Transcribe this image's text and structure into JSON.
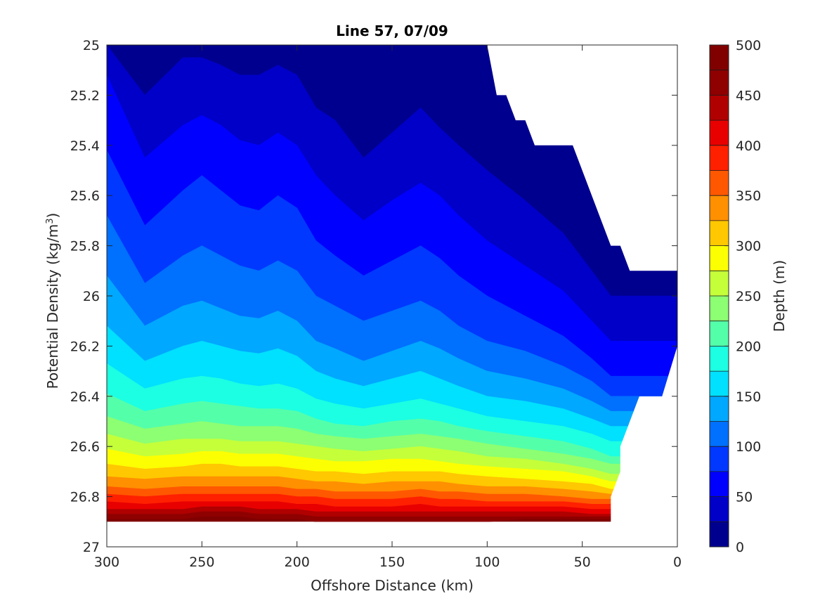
{
  "chart_data": {
    "type": "contourf",
    "title": "Line 57, 07/09",
    "xlabel": "Offshore Distance (km)",
    "ylabel": "Potential Density (kg/m",
    "ylabel_superscript": "3",
    "ylabel_suffix": ")",
    "colorbar_label": "Depth (m)",
    "xlim": [
      300,
      0
    ],
    "ylim": [
      25,
      27
    ],
    "x_reversed": true,
    "y_reversed": true,
    "x_ticks": [
      300,
      250,
      200,
      150,
      100,
      50,
      0
    ],
    "x_tick_labels": [
      "300",
      "250",
      "200",
      "150",
      "100",
      "50",
      "0"
    ],
    "y_ticks": [
      25,
      25.2,
      25.4,
      25.6,
      25.8,
      26,
      26.2,
      26.4,
      26.6,
      26.8,
      27
    ],
    "y_tick_labels": [
      "25",
      "25.2",
      "25.4",
      "25.6",
      "25.8",
      "26",
      "26.2",
      "26.4",
      "26.6",
      "26.8",
      "27"
    ],
    "colorbar_ticks": [
      0,
      50,
      100,
      150,
      200,
      250,
      300,
      350,
      400,
      450,
      500
    ],
    "colorbar_tick_labels": [
      "0",
      "50",
      "100",
      "150",
      "200",
      "250",
      "300",
      "350",
      "400",
      "450",
      "500"
    ],
    "contour_levels": [
      0,
      25,
      50,
      75,
      100,
      125,
      150,
      175,
      200,
      225,
      250,
      275,
      300,
      325,
      350,
      375,
      400,
      425,
      450,
      475,
      500
    ],
    "colormap": [
      "#00008f",
      "#0000c8",
      "#0000ff",
      "#0038ff",
      "#0070ff",
      "#00a8ff",
      "#00e0ff",
      "#1cffe2",
      "#54ffaa",
      "#8cff72",
      "#c4ff3a",
      "#fcff02",
      "#ffc800",
      "#ff9000",
      "#ff5800",
      "#ff2000",
      "#e80000",
      "#b00000",
      "#8f0000",
      "#800000"
    ],
    "x_samples": [
      300,
      280,
      260,
      250,
      240,
      230,
      220,
      210,
      200,
      190,
      180,
      165,
      150,
      135,
      125,
      115,
      100,
      80,
      60,
      45,
      35
    ],
    "depth_contours": [
      {
        "depth": 25,
        "sigma": [
          25.0,
          25.2,
          25.05,
          25.05,
          25.08,
          25.12,
          25.12,
          25.08,
          25.12,
          25.25,
          25.3,
          25.45,
          25.35,
          25.25,
          25.33,
          25.4,
          25.5,
          25.62,
          25.75,
          25.9,
          26.0
        ]
      },
      {
        "depth": 50,
        "sigma": [
          25.12,
          25.45,
          25.32,
          25.28,
          25.32,
          25.38,
          25.4,
          25.35,
          25.4,
          25.52,
          25.6,
          25.7,
          25.62,
          25.55,
          25.6,
          25.68,
          25.78,
          25.88,
          25.98,
          26.1,
          26.18
        ]
      },
      {
        "depth": 75,
        "sigma": [
          25.42,
          25.72,
          25.58,
          25.52,
          25.58,
          25.64,
          25.66,
          25.6,
          25.65,
          25.78,
          25.84,
          25.92,
          25.86,
          25.8,
          25.85,
          25.92,
          26.0,
          26.08,
          26.16,
          26.25,
          26.32
        ]
      },
      {
        "depth": 100,
        "sigma": [
          25.68,
          25.95,
          25.84,
          25.8,
          25.84,
          25.88,
          25.9,
          25.86,
          25.9,
          26.0,
          26.04,
          26.1,
          26.06,
          26.02,
          26.06,
          26.12,
          26.18,
          26.22,
          26.28,
          26.34,
          26.4
        ]
      },
      {
        "depth": 125,
        "sigma": [
          25.92,
          26.12,
          26.04,
          26.02,
          26.05,
          26.08,
          26.09,
          26.06,
          26.1,
          26.18,
          26.21,
          26.26,
          26.22,
          26.18,
          26.21,
          26.25,
          26.3,
          26.33,
          26.37,
          26.42,
          26.46
        ]
      },
      {
        "depth": 150,
        "sigma": [
          26.12,
          26.26,
          26.2,
          26.18,
          26.2,
          26.22,
          26.23,
          26.21,
          26.24,
          26.3,
          26.33,
          26.36,
          26.33,
          26.3,
          26.33,
          26.36,
          26.4,
          26.42,
          26.45,
          26.49,
          26.52
        ]
      },
      {
        "depth": 175,
        "sigma": [
          26.27,
          26.37,
          26.33,
          26.32,
          26.33,
          26.35,
          26.36,
          26.35,
          26.37,
          26.41,
          26.43,
          26.45,
          26.43,
          26.41,
          26.43,
          26.45,
          26.48,
          26.5,
          26.52,
          26.55,
          26.58
        ]
      },
      {
        "depth": 200,
        "sigma": [
          26.39,
          26.46,
          26.43,
          26.42,
          26.43,
          26.44,
          26.45,
          26.45,
          26.46,
          26.49,
          26.51,
          26.52,
          26.5,
          26.49,
          26.5,
          26.52,
          26.54,
          26.56,
          26.58,
          26.61,
          26.64
        ]
      },
      {
        "depth": 225,
        "sigma": [
          26.48,
          26.53,
          26.51,
          26.5,
          26.51,
          26.52,
          26.52,
          26.52,
          26.53,
          26.55,
          26.56,
          26.57,
          26.56,
          26.55,
          26.56,
          26.57,
          26.59,
          26.61,
          26.63,
          26.65,
          26.67
        ]
      },
      {
        "depth": 250,
        "sigma": [
          26.55,
          26.59,
          26.57,
          26.57,
          26.57,
          26.58,
          26.58,
          26.58,
          26.59,
          26.6,
          26.61,
          26.62,
          26.61,
          26.6,
          26.61,
          26.62,
          26.64,
          26.65,
          26.67,
          26.69,
          26.71
        ]
      },
      {
        "depth": 275,
        "sigma": [
          26.61,
          26.64,
          26.63,
          26.62,
          26.62,
          26.63,
          26.63,
          26.63,
          26.64,
          26.65,
          26.66,
          26.66,
          26.65,
          26.65,
          26.66,
          26.67,
          26.68,
          26.69,
          26.7,
          26.72,
          26.74
        ]
      },
      {
        "depth": 300,
        "sigma": [
          26.67,
          26.69,
          26.68,
          26.67,
          26.67,
          26.68,
          26.68,
          26.68,
          26.69,
          26.7,
          26.7,
          26.71,
          26.7,
          26.7,
          26.7,
          26.71,
          26.72,
          26.73,
          26.74,
          26.75,
          26.77
        ]
      },
      {
        "depth": 325,
        "sigma": [
          26.72,
          26.73,
          26.72,
          26.72,
          26.72,
          26.72,
          26.72,
          26.72,
          26.73,
          26.74,
          26.74,
          26.75,
          26.74,
          26.74,
          26.74,
          26.75,
          26.76,
          26.76,
          26.77,
          26.78,
          26.79
        ]
      },
      {
        "depth": 350,
        "sigma": [
          26.76,
          26.77,
          26.76,
          26.76,
          26.76,
          26.76,
          26.76,
          26.76,
          26.77,
          26.77,
          26.78,
          26.78,
          26.78,
          26.77,
          26.78,
          26.78,
          26.79,
          26.79,
          26.8,
          26.81,
          26.81
        ]
      },
      {
        "depth": 375,
        "sigma": [
          26.79,
          26.8,
          26.79,
          26.79,
          26.79,
          26.79,
          26.79,
          26.79,
          26.8,
          26.8,
          26.81,
          26.81,
          26.81,
          26.8,
          26.81,
          26.81,
          26.82,
          26.82,
          26.82,
          26.83,
          26.83
        ]
      },
      {
        "depth": 400,
        "sigma": [
          26.82,
          26.83,
          26.82,
          26.82,
          26.82,
          26.82,
          26.82,
          26.82,
          26.83,
          26.83,
          26.84,
          26.84,
          26.84,
          26.83,
          26.84,
          26.84,
          26.84,
          26.84,
          26.84,
          26.85,
          26.85
        ]
      },
      {
        "depth": 425,
        "sigma": [
          26.85,
          26.85,
          26.85,
          26.84,
          26.84,
          26.84,
          26.85,
          26.85,
          26.85,
          26.86,
          26.86,
          26.86,
          26.86,
          26.86,
          26.86,
          26.86,
          26.86,
          26.86,
          26.86,
          26.87,
          26.87
        ]
      },
      {
        "depth": 450,
        "sigma": [
          26.87,
          26.87,
          26.87,
          26.86,
          26.86,
          26.86,
          26.87,
          26.87,
          26.87,
          26.88,
          26.88,
          26.88,
          26.88,
          26.88,
          26.88,
          26.88,
          26.88,
          26.88,
          26.88,
          26.88,
          26.88
        ]
      },
      {
        "depth": 475,
        "sigma": [
          26.89,
          26.89,
          26.89,
          26.88,
          26.88,
          26.88,
          26.89,
          26.89,
          26.89,
          26.9,
          26.9,
          26.9,
          26.9,
          26.9,
          26.9,
          26.9,
          26.9,
          26.89,
          26.89,
          26.89,
          26.89
        ]
      }
    ],
    "data_region_polygon": [
      [
        300,
        25.0
      ],
      [
        100,
        25.0
      ],
      [
        95,
        25.2
      ],
      [
        90,
        25.2
      ],
      [
        85,
        25.3
      ],
      [
        80,
        25.3
      ],
      [
        75,
        25.4
      ],
      [
        55,
        25.4
      ],
      [
        35,
        25.8
      ],
      [
        30,
        25.8
      ],
      [
        25,
        25.9
      ],
      [
        0,
        25.9
      ],
      [
        0,
        26.2
      ],
      [
        8,
        26.4
      ],
      [
        20,
        26.4
      ],
      [
        30,
        26.6
      ],
      [
        30,
        26.7
      ],
      [
        35,
        26.8
      ],
      [
        35,
        26.9
      ],
      [
        300,
        26.9
      ]
    ],
    "grid": false
  }
}
